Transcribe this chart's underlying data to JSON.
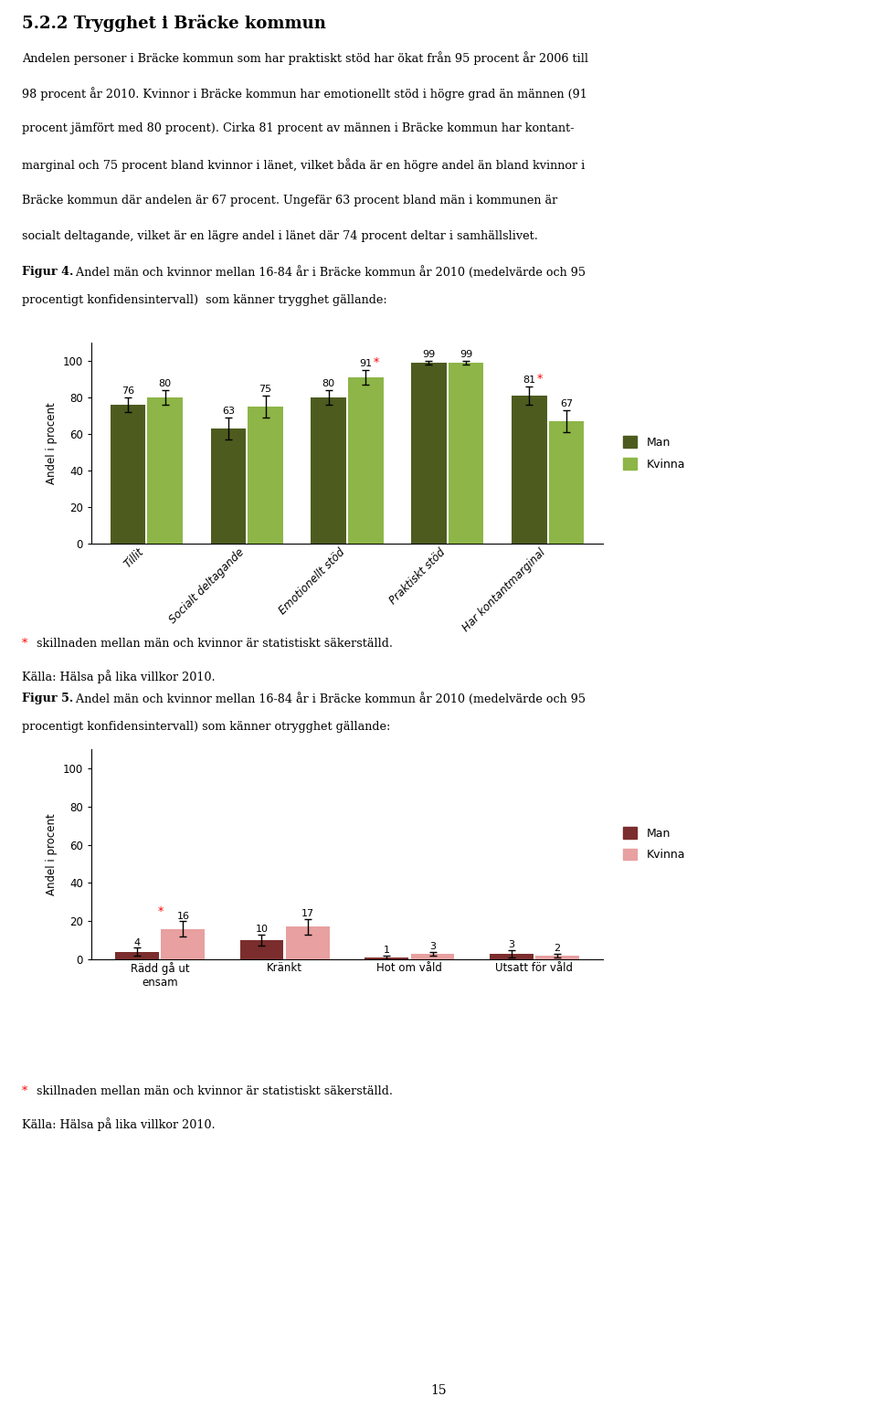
{
  "title": "5.2.2 Trygghet i Bräcke kommun",
  "body_text": [
    "Andelen personer i Bräcke kommun som har praktiskt stöd har ökat från 95 procent år 2006 till",
    "98 procent år 2010. Kvinnor i Bräcke kommun har emotionellt stöd i högre grad än männen (91",
    "procent jämfört med 80 procent). Cirka 81 procent av männen i Bräcke kommun har kontant-",
    "marginal och 75 procent bland kvinnor i länet, vilket båda är en högre andel än bland kvinnor i",
    "Bräcke kommun där andelen är 67 procent. Ungefär 63 procent bland män i kommunen är",
    "socialt deltagande, vilket är en lägre andel i länet där 74 procent deltar i samhällslivet."
  ],
  "fig4_caption_bold": "Figur 4.",
  "fig4_caption": " Andel män och kvinnor mellan 16-84 år i Bräcke kommun år 2010 (medelvärde och 95 procentigt konfidensintervall)  som känner trygghet gällande:",
  "fig4_caption_line2": "procentigt konfidensintervall)  som känner trygghet gällande:",
  "fig4_categories": [
    "Tillit",
    "Socialt deltagande",
    "Emotionellt stöd",
    "Praktiskt stöd",
    "Har kontantmarginal"
  ],
  "fig4_man_values": [
    76,
    63,
    80,
    99,
    81
  ],
  "fig4_kvinna_values": [
    80,
    75,
    91,
    99,
    67
  ],
  "fig4_man_errors": [
    4,
    6,
    4,
    1,
    5
  ],
  "fig4_kvinna_errors": [
    4,
    6,
    4,
    1,
    6
  ],
  "fig4_man_starred": [
    false,
    false,
    false,
    false,
    true
  ],
  "fig4_kvinna_starred": [
    false,
    false,
    true,
    false,
    false
  ],
  "fig4_man_color": "#4d5c1e",
  "fig4_kvinna_color": "#8db547",
  "fig5_caption_bold": "Figur 5.",
  "fig5_caption": " Andel män och kvinnor mellan 16-84 år i Bräcke kommun år 2010 (medelvärde och 95 procentigt konfidensintervall) som känner otrygghet gällande:",
  "fig5_categories": [
    "Rädd gå ut\nensam",
    "Kränkt",
    "Hot om våld",
    "Utsatt för våld"
  ],
  "fig5_man_values": [
    4,
    10,
    1,
    3
  ],
  "fig5_kvinna_values": [
    16,
    17,
    3,
    2
  ],
  "fig5_man_errors": [
    2,
    3,
    1,
    2
  ],
  "fig5_kvinna_errors": [
    4,
    4,
    1,
    1
  ],
  "fig5_man_starred": [
    true,
    false,
    false,
    false
  ],
  "fig5_kvinna_starred": [
    false,
    false,
    false,
    false
  ],
  "fig5_man_color": "#7b2d2d",
  "fig5_kvinna_color": "#e8a0a0",
  "ylabel": "Andel i procent",
  "legend_man": "Man",
  "legend_kvinna": "Kvinna",
  "footnote_star": "*",
  "footnote_text": " skillnaden mellan män och kvinnor är statistiskt säkerställd.",
  "source": "Källa: Hälsa på lika villkor 2010.",
  "page_number": "15",
  "background_color": "#ffffff"
}
